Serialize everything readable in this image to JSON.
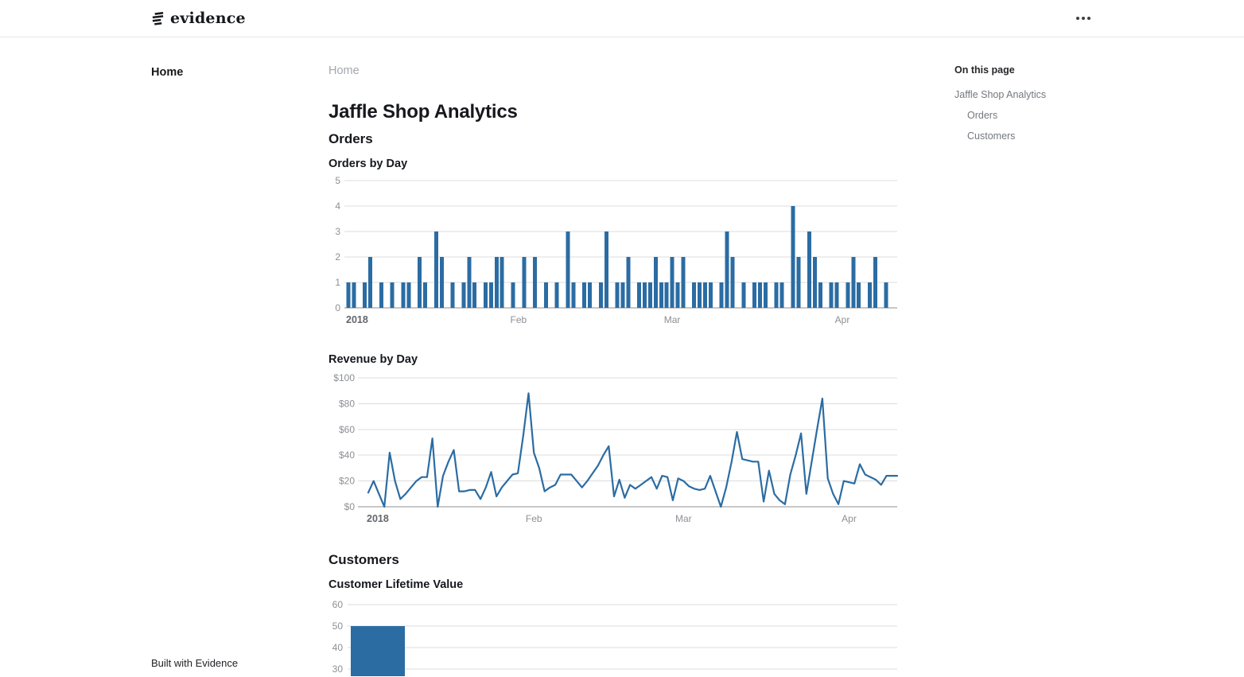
{
  "header": {
    "brand": "evidence",
    "menu_icon": "three-dots"
  },
  "nav_sidebar": {
    "items": [
      {
        "label": "Home",
        "active": true
      }
    ],
    "footer_text": "Built with Evidence"
  },
  "main": {
    "breadcrumb": "Home",
    "title": "Jaffle Shop Analytics"
  },
  "toc": {
    "heading": "On this page",
    "links": [
      {
        "label": "Jaffle Shop Analytics",
        "indent": 0
      },
      {
        "label": "Orders",
        "indent": 1
      },
      {
        "label": "Customers",
        "indent": 1
      }
    ]
  },
  "colors": {
    "series_blue": "#2b6ca3",
    "grid": "#dcdcdc",
    "axis_line": "#8f8f8f",
    "axis_label": "#8c8f94"
  },
  "chart_data": [
    {
      "type": "bar",
      "section": "Orders",
      "title": "Orders by Day",
      "x_ticks": [
        "2018",
        "Feb",
        "Mar",
        "Apr"
      ],
      "y_ticks": [
        0,
        1,
        2,
        3,
        4,
        5
      ],
      "ylim": [
        0,
        5
      ],
      "x_unit": "day",
      "values": [
        1,
        1,
        0,
        1,
        2,
        0,
        1,
        0,
        1,
        0,
        1,
        1,
        0,
        2,
        1,
        0,
        3,
        2,
        0,
        1,
        0,
        1,
        2,
        1,
        0,
        1,
        1,
        2,
        2,
        0,
        1,
        0,
        2,
        0,
        2,
        0,
        1,
        0,
        1,
        0,
        3,
        1,
        0,
        1,
        1,
        0,
        1,
        3,
        0,
        1,
        1,
        2,
        0,
        1,
        1,
        1,
        2,
        1,
        1,
        2,
        1,
        2,
        0,
        1,
        1,
        1,
        1,
        0,
        1,
        3,
        2,
        0,
        1,
        0,
        1,
        1,
        1,
        0,
        1,
        1,
        0,
        4,
        2,
        0,
        3,
        2,
        1,
        0,
        1,
        1,
        0,
        1,
        2,
        1,
        0,
        1,
        2,
        0,
        1,
        0
      ]
    },
    {
      "type": "line",
      "section": "Orders",
      "title": "Revenue by Day",
      "x_ticks": [
        "2018",
        "Feb",
        "Mar",
        "Apr"
      ],
      "y_ticks": [
        0,
        20,
        40,
        60,
        80,
        100
      ],
      "y_tick_labels": [
        "$0",
        "$20",
        "$40",
        "$60",
        "$80",
        "$100"
      ],
      "ylim": [
        0,
        100
      ],
      "x_unit": "day",
      "values": [
        11,
        20,
        10,
        0,
        42,
        20,
        6,
        10,
        15,
        20,
        23,
        23,
        53,
        0,
        24,
        35,
        44,
        12,
        12,
        13,
        13,
        6,
        15,
        27,
        8,
        15,
        20,
        25,
        26,
        55,
        88,
        42,
        30,
        12,
        15,
        17,
        25,
        25,
        25,
        20,
        15,
        20,
        26,
        32,
        40,
        47,
        8,
        21,
        7,
        17,
        14,
        17,
        20,
        23,
        14,
        24,
        23,
        5,
        22,
        20,
        16,
        14,
        13,
        14,
        24,
        12,
        0,
        15,
        35,
        58,
        37,
        36,
        35,
        35,
        4,
        28,
        10,
        5,
        2,
        25,
        40,
        57,
        10,
        35,
        60,
        84,
        22,
        10,
        2,
        20,
        19,
        18,
        33,
        25,
        23,
        21,
        17,
        24,
        24,
        24
      ]
    },
    {
      "type": "bar",
      "section": "Customers",
      "title": "Customer Lifetime Value",
      "y_ticks": [
        60,
        50,
        40,
        30
      ],
      "values": [
        50
      ]
    }
  ]
}
